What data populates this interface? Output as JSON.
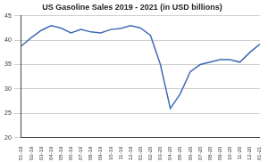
{
  "chart_data": {
    "type": "line",
    "title": "US Gasoline Sales 2019 - 2021 (in USD billions)",
    "categories": [
      "01-19",
      "02-19",
      "03-19",
      "04-19",
      "05-19",
      "06-19",
      "07-19",
      "08-19",
      "09-19",
      "10-19",
      "11-19",
      "12-19",
      "01-20",
      "02-20",
      "03-20",
      "04-20",
      "05-20",
      "06-20",
      "07-20",
      "08-20",
      "09-20",
      "10-20",
      "11-20",
      "12-20",
      "01-21"
    ],
    "values": [
      38.8,
      40.5,
      42,
      43,
      42.5,
      41.5,
      42.2,
      41.7,
      41.5,
      42.2,
      42.4,
      43,
      42.5,
      41,
      35,
      26,
      29,
      33.5,
      35,
      35.5,
      36,
      36,
      35.5,
      37.5,
      39.2
    ],
    "color": "#3f6bb5",
    "ylim": [
      20,
      45
    ],
    "yticks": [
      20,
      25,
      30,
      35,
      40,
      45
    ],
    "grid": true
  }
}
